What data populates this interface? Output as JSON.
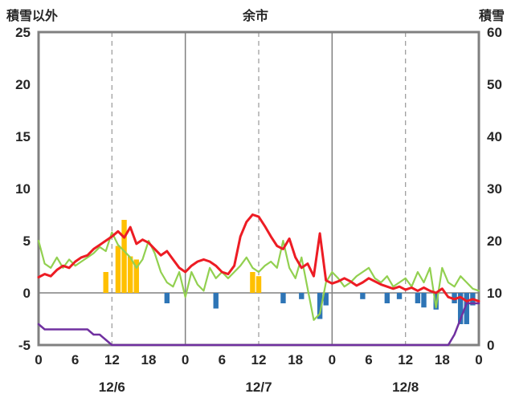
{
  "header": {
    "left_label": "積雪以外",
    "title": "余市",
    "right_label": "積雪"
  },
  "colors": {
    "border": "#808080",
    "grid_dashed": "#a0a0a0",
    "grid_solid": "#808080",
    "zero_line": "#808080",
    "text": "#262626",
    "temp_line": "#ed1c24",
    "green_line": "#92d050",
    "snow_line": "#7030a0",
    "precip_bar": "#ffc000",
    "blue_bar": "#2e75b6"
  },
  "chart_data": {
    "type": "line",
    "title": "余市",
    "left_axis": {
      "label": "積雪以外",
      "min": -5,
      "max": 25,
      "ticks": [
        25,
        20,
        15,
        10,
        5,
        0,
        -5
      ]
    },
    "right_axis": {
      "label": "積雪",
      "min": 0,
      "max": 60,
      "ticks": [
        60,
        50,
        40,
        30,
        20,
        10,
        0
      ]
    },
    "x_axis": {
      "min_hour": 0,
      "max_hour": 72,
      "tick_hours": [
        0,
        6,
        12,
        18,
        24,
        30,
        36,
        42,
        48,
        54,
        60,
        66,
        72
      ],
      "tick_labels": [
        "0",
        "6",
        "12",
        "18",
        "0",
        "6",
        "12",
        "18",
        "0",
        "6",
        "12",
        "18",
        "0"
      ],
      "dashed_grid_hours": [
        12,
        36,
        60
      ],
      "solid_grid_hours": [
        24,
        48
      ],
      "date_labels": [
        {
          "label": "12/6",
          "hour": 12
        },
        {
          "label": "12/7",
          "hour": 36
        },
        {
          "label": "12/8",
          "hour": 60
        }
      ]
    },
    "series": [
      {
        "name": "green-line",
        "axis": "left",
        "color": "#92d050",
        "width": 2.2,
        "values": [
          5.0,
          2.8,
          2.4,
          3.4,
          2.4,
          3.2,
          2.6,
          3.0,
          3.4,
          3.8,
          4.4,
          4.0,
          5.8,
          4.6,
          4.0,
          3.4,
          2.4,
          3.2,
          5.0,
          3.8,
          2.0,
          1.0,
          0.6,
          2.0,
          -0.4,
          2.0,
          0.8,
          0.2,
          2.4,
          1.4,
          2.0,
          1.4,
          2.0,
          2.6,
          3.4,
          2.4,
          2.0,
          2.6,
          3.0,
          2.4,
          5.0,
          2.4,
          1.4,
          3.4,
          0.4,
          -2.6,
          -2.0,
          1.0,
          2.0,
          1.4,
          0.6,
          1.0,
          1.6,
          2.0,
          2.4,
          1.4,
          1.0,
          1.6,
          0.6,
          1.0,
          1.4,
          0.6,
          2.0,
          1.0,
          2.4,
          -1.4,
          2.4,
          1.0,
          0.6,
          1.6,
          1.0,
          0.4,
          0.2
        ]
      },
      {
        "name": "red-line",
        "axis": "left",
        "color": "#ed1c24",
        "width": 3,
        "values": [
          1.5,
          1.8,
          1.6,
          2.2,
          2.6,
          2.4,
          3.0,
          3.4,
          3.6,
          4.2,
          4.6,
          5.0,
          5.4,
          5.9,
          5.3,
          6.3,
          4.7,
          5.1,
          4.8,
          4.2,
          3.6,
          4.0,
          3.2,
          2.4,
          2.0,
          2.6,
          3.0,
          3.2,
          3.0,
          2.6,
          2.0,
          1.8,
          2.6,
          5.4,
          6.8,
          7.5,
          7.3,
          6.4,
          5.4,
          4.5,
          4.2,
          5.2,
          3.4,
          2.4,
          2.8,
          1.6,
          5.7,
          1.2,
          0.9,
          1.1,
          1.4,
          1.1,
          0.7,
          1.0,
          1.4,
          1.1,
          0.8,
          0.6,
          0.4,
          0.6,
          0.3,
          0.5,
          0.2,
          0.5,
          0.2,
          0.0,
          0.4,
          -0.4,
          -0.6,
          -0.4,
          -0.8,
          -0.6,
          -0.8
        ]
      },
      {
        "name": "purple-line",
        "axis": "right",
        "color": "#7030a0",
        "width": 2.5,
        "values": [
          4,
          3,
          3,
          3,
          3,
          3,
          3,
          3,
          3,
          2,
          2,
          1,
          0,
          0,
          0,
          0,
          0,
          0,
          0,
          0,
          0,
          0,
          0,
          0,
          0,
          0,
          0,
          0,
          0,
          0,
          0,
          0,
          0,
          0,
          0,
          0,
          0,
          0,
          0,
          0,
          0,
          0,
          0,
          0,
          0,
          0,
          0,
          0,
          0,
          0,
          0,
          0,
          0,
          0,
          0,
          0,
          0,
          0,
          0,
          0,
          0,
          0,
          0,
          0,
          0,
          0,
          0,
          0,
          2,
          5,
          8,
          8,
          8
        ]
      }
    ],
    "bars": [
      {
        "name": "yellow-bars",
        "axis": "left",
        "color": "#ffc000",
        "points": [
          {
            "hour": 11,
            "value": 2.0
          },
          {
            "hour": 13,
            "value": 4.5
          },
          {
            "hour": 14,
            "value": 7.0
          },
          {
            "hour": 15,
            "value": 3.5
          },
          {
            "hour": 16,
            "value": 3.2
          },
          {
            "hour": 35,
            "value": 2.0
          },
          {
            "hour": 36,
            "value": 1.6
          }
        ]
      },
      {
        "name": "blue-bars",
        "axis": "left",
        "color": "#2e75b6",
        "points": [
          {
            "hour": 21,
            "value": -1.0
          },
          {
            "hour": 29,
            "value": -1.5
          },
          {
            "hour": 40,
            "value": -1.0
          },
          {
            "hour": 43,
            "value": -0.6
          },
          {
            "hour": 46,
            "value": -2.5
          },
          {
            "hour": 47,
            "value": -1.2
          },
          {
            "hour": 53,
            "value": -0.6
          },
          {
            "hour": 57,
            "value": -1.0
          },
          {
            "hour": 59,
            "value": -0.6
          },
          {
            "hour": 62,
            "value": -1.0
          },
          {
            "hour": 63,
            "value": -1.4
          },
          {
            "hour": 65,
            "value": -1.6
          },
          {
            "hour": 68,
            "value": -1.0
          },
          {
            "hour": 69,
            "value": -3.0
          },
          {
            "hour": 70,
            "value": -3.0
          },
          {
            "hour": 71,
            "value": -1.2
          }
        ]
      }
    ]
  }
}
